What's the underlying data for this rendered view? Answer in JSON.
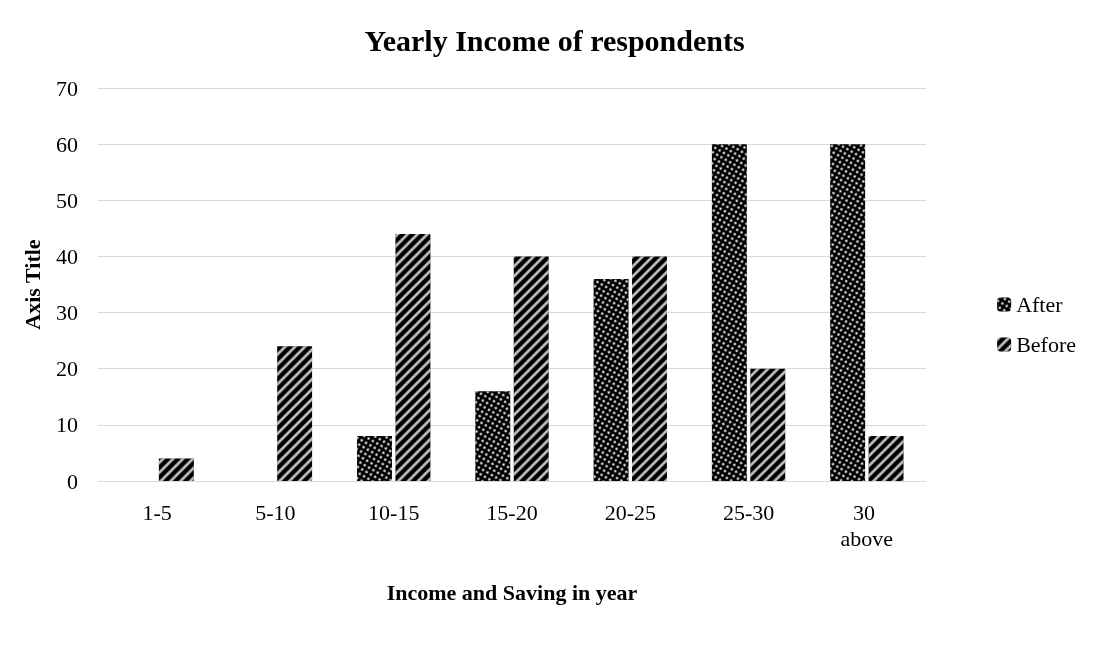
{
  "chart_data": {
    "type": "bar",
    "title": "Yearly Income of respondents",
    "xlabel": "Income and Saving in year",
    "ylabel": "Axis Title",
    "categories": [
      "1-5",
      "5-10",
      "10-15",
      "15-20",
      "20-25",
      "25-30",
      "30 above"
    ],
    "series": [
      {
        "name": "After",
        "color": "#000000",
        "values": [
          0,
          0,
          8,
          16,
          36,
          60,
          60
        ]
      },
      {
        "name": "Before",
        "color": "#000000",
        "values": [
          4,
          24,
          44,
          40,
          40,
          20,
          8
        ]
      }
    ],
    "ylim": [
      0,
      70
    ],
    "yticks": [
      0,
      10,
      20,
      30,
      40,
      50,
      60,
      70
    ],
    "grid": "y",
    "legend": "right"
  }
}
